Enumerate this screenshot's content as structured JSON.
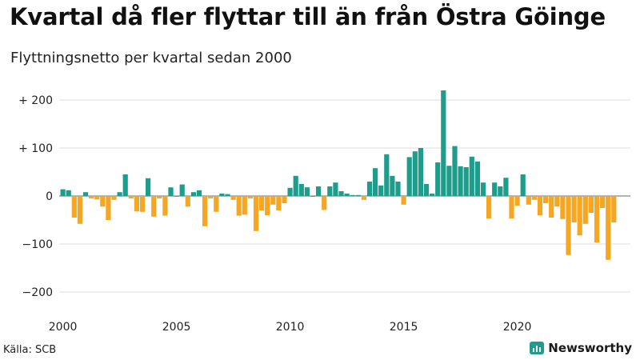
{
  "title": "Kvartal då fler flyttar till än från Östra Göinge",
  "subtitle": "Flyttningsnetto per kvartal sedan 2000",
  "source": "Källa: SCB",
  "brand": {
    "name": "Newsworthy",
    "icon": "chart-logo-icon"
  },
  "colors": {
    "positive": "#1e9c8c",
    "negative": "#f5a623",
    "grid": "#dddddd",
    "zero": "#888888"
  },
  "chart_data": {
    "type": "bar",
    "ylim": [
      -220,
      225
    ],
    "yticks": [
      200,
      100,
      0,
      -100,
      -200
    ],
    "ytick_labels": [
      "+ 200",
      "+ 100",
      "0",
      "−100",
      "−200"
    ],
    "xticks": [
      2000,
      2005,
      2010,
      2015,
      2020
    ],
    "xtick_labels": [
      "2000",
      "2005",
      "2010",
      "2015",
      "2020"
    ],
    "start": "2000Q1",
    "values": [
      14,
      12,
      -45,
      -58,
      8,
      -5,
      -7,
      -22,
      -50,
      -8,
      8,
      45,
      -5,
      -32,
      -33,
      37,
      -43,
      -5,
      -41,
      18,
      0,
      24,
      -22,
      8,
      12,
      -63,
      -5,
      -33,
      5,
      4,
      -8,
      -41,
      -39,
      -5,
      -73,
      -30,
      -40,
      -18,
      -30,
      -15,
      17,
      42,
      25,
      18,
      0,
      20,
      -29,
      20,
      28,
      10,
      5,
      2,
      2,
      -8,
      30,
      58,
      22,
      87,
      42,
      30,
      -18,
      81,
      93,
      100,
      25,
      5,
      70,
      220,
      63,
      104,
      62,
      60,
      82,
      72,
      28,
      -47,
      28,
      20,
      38,
      -47,
      -20,
      45,
      -18,
      -8,
      -40,
      -15,
      -45,
      -22,
      -48,
      -123,
      -55,
      -82,
      -58,
      -35,
      -97,
      -25,
      -133,
      -55
    ]
  }
}
